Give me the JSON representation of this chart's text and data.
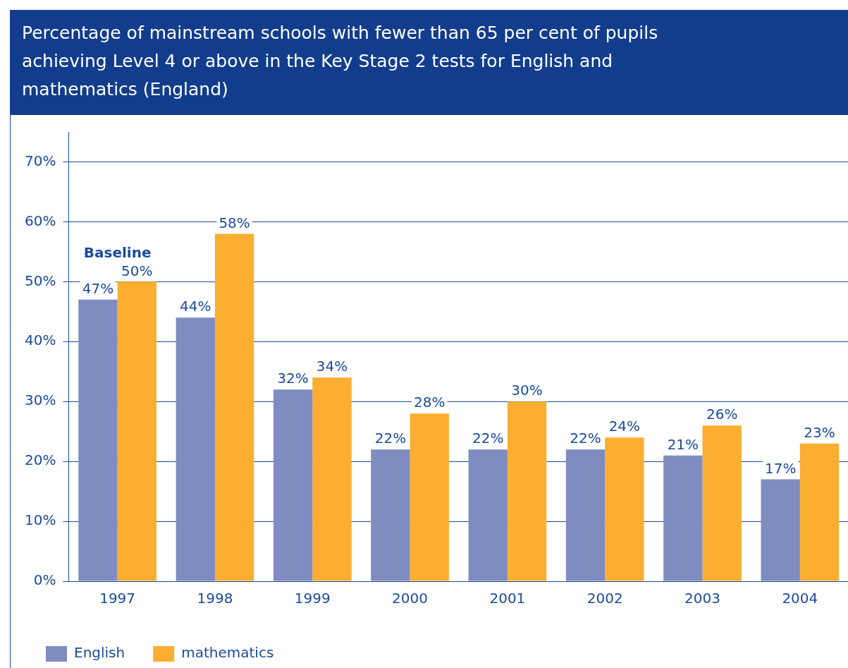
{
  "chart_data": {
    "type": "bar",
    "title": "Percentage of mainstream schools with fewer than 65 per cent of pupils achieving Level 4 or above in the Key Stage 2 tests for English and mathematics (England)",
    "categories": [
      "1997",
      "1998",
      "1999",
      "2000",
      "2001",
      "2002",
      "2003",
      "2004"
    ],
    "series": [
      {
        "name": "English",
        "color": "#7f8cc0",
        "values": [
          47,
          44,
          32,
          22,
          22,
          22,
          21,
          17
        ],
        "value_labels": [
          "47%",
          "44%",
          "32%",
          "22%",
          "22%",
          "22%",
          "21%",
          "17%"
        ]
      },
      {
        "name": "mathematics",
        "color": "#fbae30",
        "values": [
          50,
          58,
          34,
          28,
          30,
          24,
          26,
          23
        ],
        "value_labels": [
          "50%",
          "58%",
          "34%",
          "28%",
          "30%",
          "24%",
          "26%",
          "23%"
        ]
      }
    ],
    "ylim": [
      0,
      75
    ],
    "yticks": [
      {
        "value": 0,
        "label": "0%"
      },
      {
        "value": 10,
        "label": "10%"
      },
      {
        "value": 20,
        "label": "20%"
      },
      {
        "value": 30,
        "label": "30%"
      },
      {
        "value": 40,
        "label": "40%"
      },
      {
        "value": 50,
        "label": "50%"
      },
      {
        "value": 60,
        "label": "60%"
      },
      {
        "value": 70,
        "label": "70%"
      }
    ],
    "grid": "y",
    "legend": "bottom left",
    "annotations": [
      {
        "text": "Baseline",
        "x": "1997",
        "y": 50
      }
    ]
  }
}
